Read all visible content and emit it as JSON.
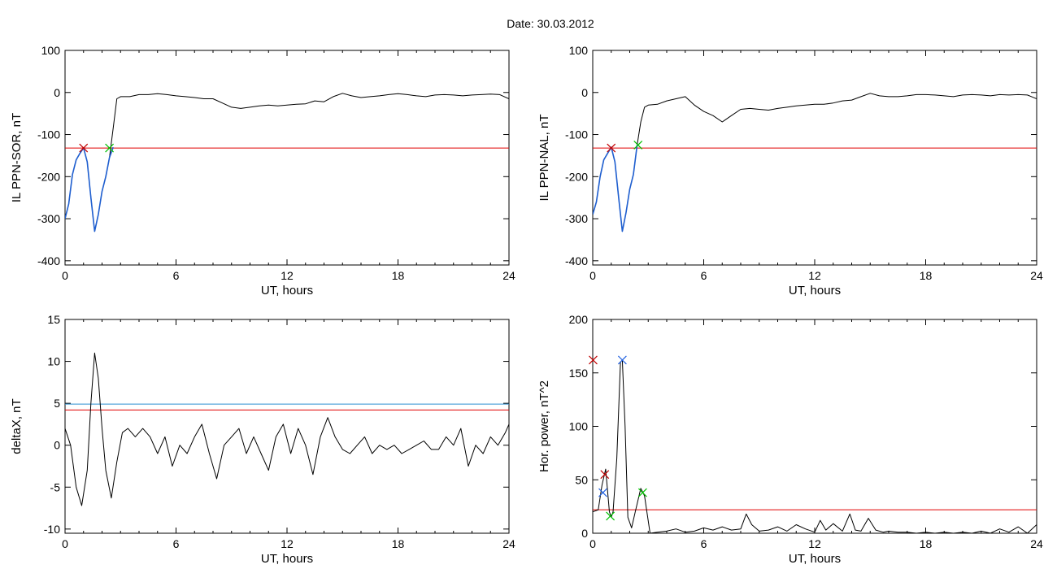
{
  "figure": {
    "title": "Date:  30.03.2012"
  },
  "colors": {
    "data": "#000000",
    "threshold": "#e00000",
    "highlight": "#1f5fd0",
    "level2": "#2a8fd0",
    "marker_start": "#c00000",
    "marker_mid": "#00c000",
    "marker_peak": "#2060e0"
  },
  "chart_data": [
    {
      "id": "il_sor",
      "type": "line",
      "title": "",
      "xlabel": "UT, hours",
      "ylabel": "IL PPN-SOR, nT",
      "xlim": [
        0,
        24
      ],
      "ylim": [
        -410,
        100
      ],
      "xticks": [
        0,
        6,
        12,
        18,
        24
      ],
      "yticks": [
        100,
        0,
        -100,
        -200,
        -300,
        -400
      ],
      "grid": false,
      "series": [
        {
          "role": "data",
          "x": [
            0,
            0.2,
            0.4,
            0.6,
            0.8,
            1.0,
            1.2,
            1.4,
            1.6,
            1.8,
            2.0,
            2.2,
            2.4,
            2.6,
            2.8,
            3.0,
            3.5,
            4,
            4.5,
            5,
            5.5,
            6,
            6.5,
            7,
            7.5,
            8,
            8.5,
            9,
            9.5,
            10,
            10.5,
            11,
            11.5,
            12,
            12.5,
            13,
            13.5,
            14,
            14.5,
            15,
            15.5,
            16,
            16.5,
            17,
            17.5,
            18,
            18.5,
            19,
            19.5,
            20,
            20.5,
            21,
            21.5,
            22,
            22.5,
            23,
            23.5,
            24
          ],
          "y": [
            -300,
            -265,
            -195,
            -160,
            -145,
            -132,
            -165,
            -250,
            -330,
            -290,
            -235,
            -200,
            -155,
            -85,
            -15,
            -10,
            -10,
            -5,
            -5,
            -3,
            -5,
            -8,
            -10,
            -12,
            -15,
            -15,
            -25,
            -35,
            -38,
            -35,
            -32,
            -30,
            -32,
            -30,
            -28,
            -27,
            -20,
            -22,
            -10,
            -2,
            -8,
            -12,
            -10,
            -8,
            -5,
            -3,
            -5,
            -8,
            -10,
            -6,
            -5,
            -6,
            -8,
            -6,
            -5,
            -4,
            -5,
            -15
          ]
        },
        {
          "role": "highlight",
          "x": [
            0,
            0.2,
            0.4,
            0.6,
            0.8,
            1.0,
            1.2,
            1.4,
            1.6,
            1.8,
            2.0,
            2.2,
            2.4,
            2.6
          ],
          "y": [
            -300,
            -265,
            -195,
            -160,
            -145,
            -132,
            -165,
            -250,
            -330,
            -290,
            -235,
            -200,
            -155,
            -130
          ]
        }
      ],
      "threshold": -132,
      "markers": [
        {
          "x": 1.0,
          "y": -132,
          "color": "#c00000"
        },
        {
          "x": 2.4,
          "y": -132,
          "color": "#00c000"
        }
      ]
    },
    {
      "id": "il_nal",
      "type": "line",
      "title": "",
      "xlabel": "UT, hours",
      "ylabel": "IL PPN-NAL, nT",
      "xlim": [
        0,
        24
      ],
      "ylim": [
        -410,
        100
      ],
      "xticks": [
        0,
        6,
        12,
        18,
        24
      ],
      "yticks": [
        100,
        0,
        -100,
        -200,
        -300,
        -400
      ],
      "grid": false,
      "series": [
        {
          "role": "data",
          "x": [
            0,
            0.2,
            0.4,
            0.6,
            0.8,
            1.0,
            1.2,
            1.4,
            1.6,
            1.8,
            2.0,
            2.2,
            2.4,
            2.6,
            2.8,
            3.0,
            3.5,
            4,
            4.5,
            5,
            5.5,
            6,
            6.5,
            7,
            7.5,
            8,
            8.5,
            9,
            9.5,
            10,
            10.5,
            11,
            11.5,
            12,
            12.5,
            13,
            13.5,
            14,
            14.5,
            15,
            15.5,
            16,
            16.5,
            17,
            17.5,
            18,
            18.5,
            19,
            19.5,
            20,
            20.5,
            21,
            21.5,
            22,
            22.5,
            23,
            23.5,
            24
          ],
          "y": [
            -290,
            -260,
            -200,
            -160,
            -145,
            -130,
            -165,
            -250,
            -330,
            -285,
            -230,
            -195,
            -125,
            -70,
            -35,
            -30,
            -28,
            -20,
            -15,
            -10,
            -30,
            -45,
            -55,
            -70,
            -55,
            -40,
            -38,
            -40,
            -42,
            -38,
            -35,
            -32,
            -30,
            -28,
            -28,
            -25,
            -20,
            -18,
            -10,
            -2,
            -8,
            -10,
            -10,
            -8,
            -5,
            -5,
            -6,
            -8,
            -10,
            -6,
            -5,
            -6,
            -8,
            -5,
            -6,
            -5,
            -6,
            -15
          ]
        },
        {
          "role": "highlight",
          "x": [
            0,
            0.2,
            0.4,
            0.6,
            0.8,
            1.0,
            1.2,
            1.4,
            1.6,
            1.8,
            2.0,
            2.2,
            2.4
          ],
          "y": [
            -290,
            -260,
            -200,
            -160,
            -145,
            -130,
            -165,
            -250,
            -330,
            -285,
            -230,
            -195,
            -125
          ]
        }
      ],
      "threshold": -132,
      "markers": [
        {
          "x": 1.0,
          "y": -132,
          "color": "#c00000"
        },
        {
          "x": 2.45,
          "y": -125,
          "color": "#00c000"
        }
      ]
    },
    {
      "id": "deltax",
      "type": "line",
      "title": "",
      "xlabel": "UT, hours",
      "ylabel": "deltaX, nT",
      "xlim": [
        0,
        24
      ],
      "ylim": [
        -10.5,
        15
      ],
      "xticks": [
        0,
        6,
        12,
        18,
        24
      ],
      "yticks": [
        15,
        10,
        5,
        0,
        -5,
        -10
      ],
      "grid": false,
      "series": [
        {
          "role": "data",
          "x": [
            0,
            0.3,
            0.6,
            0.9,
            1.2,
            1.4,
            1.6,
            1.8,
            2.0,
            2.2,
            2.5,
            2.8,
            3.1,
            3.4,
            3.8,
            4.2,
            4.6,
            5,
            5.4,
            5.8,
            6.2,
            6.6,
            7,
            7.4,
            7.8,
            8.2,
            8.6,
            9,
            9.4,
            9.8,
            10.2,
            10.6,
            11,
            11.4,
            11.8,
            12.2,
            12.6,
            13,
            13.4,
            13.8,
            14.2,
            14.6,
            15,
            15.4,
            15.8,
            16.2,
            16.6,
            17,
            17.4,
            17.8,
            18.2,
            18.6,
            19,
            19.4,
            19.8,
            20.2,
            20.6,
            21,
            21.4,
            21.8,
            22.2,
            22.6,
            23,
            23.4,
            23.8,
            24
          ],
          "y": [
            2,
            0,
            -5,
            -7.2,
            -3,
            5,
            11,
            8,
            2,
            -3,
            -6.3,
            -2,
            1.5,
            2,
            1,
            2,
            1,
            -1,
            1,
            -2.5,
            0,
            -1,
            1,
            2.5,
            -1,
            -4,
            0,
            1,
            2,
            -1,
            1,
            -1,
            -3,
            1,
            2.5,
            -1,
            2,
            0,
            -3.5,
            1,
            3.3,
            1,
            -0.5,
            -1,
            0,
            1,
            -1,
            0,
            -0.5,
            0,
            -1,
            -0.5,
            0,
            0.5,
            -0.5,
            -0.5,
            1,
            0,
            2,
            -2.5,
            0,
            -1,
            1,
            0,
            1.5,
            2.5
          ]
        }
      ],
      "threshold": 4.2,
      "level2": 4.9
    },
    {
      "id": "hor_power",
      "type": "line",
      "title": "",
      "xlabel": "UT, hours",
      "ylabel": "Hor. power, nT^2",
      "xlim": [
        0,
        24
      ],
      "ylim": [
        0,
        200
      ],
      "xticks": [
        0,
        6,
        12,
        18,
        24
      ],
      "yticks": [
        200,
        150,
        100,
        50,
        0
      ],
      "grid": false,
      "series": [
        {
          "role": "data",
          "x": [
            0,
            0.3,
            0.5,
            0.7,
            0.9,
            1.0,
            1.1,
            1.3,
            1.5,
            1.6,
            1.75,
            1.9,
            2.1,
            2.3,
            2.6,
            2.8,
            3.1,
            3.5,
            4,
            4.5,
            5,
            5.5,
            6,
            6.5,
            7,
            7.5,
            8,
            8.3,
            8.6,
            9,
            9.5,
            10,
            10.5,
            11,
            11.5,
            12,
            12.3,
            12.6,
            13,
            13.5,
            13.9,
            14.2,
            14.5,
            14.9,
            15.3,
            15.7,
            16,
            16.5,
            17,
            17.5,
            18,
            18.5,
            19,
            19.5,
            20,
            20.5,
            21,
            21.5,
            22,
            22.5,
            23,
            23.5,
            24
          ],
          "y": [
            20,
            22,
            45,
            60,
            20,
            15,
            20,
            70,
            160,
            162,
            100,
            15,
            5,
            20,
            42,
            35,
            0,
            1,
            2,
            4,
            1,
            2,
            5,
            3,
            6,
            3,
            4,
            18,
            8,
            2,
            3,
            6,
            2,
            8,
            4,
            1,
            12,
            3,
            9,
            2,
            18,
            3,
            2,
            14,
            3,
            1,
            2,
            1,
            1,
            0,
            1,
            0,
            1,
            0,
            1,
            0,
            2,
            0,
            4,
            1,
            6,
            0,
            8
          ]
        }
      ],
      "threshold": 22,
      "markers": [
        {
          "x": 0.65,
          "y": 55,
          "color": "#c00000"
        },
        {
          "x": 0.55,
          "y": 38,
          "color": "#2060e0"
        },
        {
          "x": 0.95,
          "y": 16,
          "color": "#00c000"
        },
        {
          "x": 1.6,
          "y": 162,
          "color": "#2060e0"
        },
        {
          "x": 2.7,
          "y": 38,
          "color": "#00c000"
        },
        {
          "x": 0.02,
          "y": 162,
          "color": "#c00000"
        }
      ]
    }
  ]
}
